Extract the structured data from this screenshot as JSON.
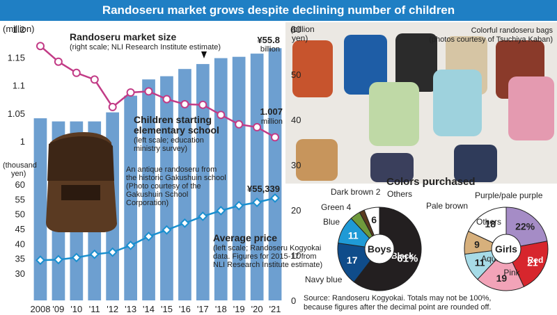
{
  "title": "Randoseru market grows despite declining number of children",
  "chart_data": [
    {
      "type": "bar",
      "title": "Randoseru market size",
      "subtitle": "(right scale; NLI Research Institute estimate)",
      "categories": [
        "2008",
        "'09",
        "'10",
        "'11",
        "'12",
        "'13",
        "'14",
        "'15",
        "'16",
        "'17",
        "'18",
        "'19",
        "'20",
        "'21"
      ],
      "values": [
        40.3,
        39.6,
        39.6,
        39.6,
        41.6,
        45.3,
        48.9,
        49.6,
        51.2,
        52.3,
        53.6,
        53.9,
        54.6,
        55.8
      ],
      "ylabel": "(billion yen)",
      "ylim": [
        0,
        60
      ],
      "yticks": [
        0,
        10,
        20,
        30,
        40,
        50,
        60
      ],
      "last_label": "¥55.8",
      "last_unit": "billion"
    },
    {
      "type": "line",
      "title": "Children starting elementary school",
      "subtitle": "(left scale; education ministry survey)",
      "categories": [
        "2008",
        "'09",
        "'10",
        "'11",
        "'12",
        "'13",
        "'14",
        "'15",
        "'16",
        "'17",
        "'18",
        "'19",
        "'20",
        "'21"
      ],
      "values": [
        1.17,
        1.142,
        1.122,
        1.11,
        1.061,
        1.087,
        1.089,
        1.075,
        1.066,
        1.065,
        1.047,
        1.03,
        1.025,
        1.007
      ],
      "ylabel": "(million)",
      "ylim": [
        0.95,
        1.2
      ],
      "yticks": [
        "1.2",
        "1.15",
        "1.1",
        "1.05",
        "1"
      ],
      "last_label": "1.007",
      "last_unit": "million"
    },
    {
      "type": "line",
      "title": "Average price",
      "subtitle_lines": [
        "(left scale; Randoseru Kogyokai",
        "data. Figures for 2015-17 from",
        "NLI Research Institute estimate)"
      ],
      "categories": [
        "2008",
        "'09",
        "'10",
        "'11",
        "'12",
        "'13",
        "'14",
        "'15",
        "'16",
        "'17",
        "'18",
        "'19",
        "'20",
        "'21"
      ],
      "values": [
        34.4,
        34.6,
        35.3,
        36.4,
        37.1,
        39.4,
        42.4,
        44.6,
        46.9,
        49.2,
        51.1,
        52.8,
        53.9,
        55.339
      ],
      "ylabel": "(thousand yen)",
      "ylim": [
        25,
        62
      ],
      "yticks": [
        30,
        35,
        40,
        45,
        50,
        55,
        60
      ],
      "last_label": "¥55,339"
    },
    {
      "type": "pie",
      "title": "Colors purchased",
      "center_label": "Boys",
      "slices": [
        {
          "label": "Black",
          "value": 61,
          "display": "61%",
          "color": "#231f20"
        },
        {
          "label": "Navy blue",
          "value": 17,
          "display": "17",
          "color": "#0f4c8a"
        },
        {
          "label": "Blue",
          "value": 11,
          "display": "11",
          "color": "#1f9ad6"
        },
        {
          "label": "Green",
          "value": 4,
          "display": "4",
          "color": "#6f9a3c"
        },
        {
          "label": "Dark brown",
          "value": 2,
          "display": "2",
          "color": "#5a3a1e"
        },
        {
          "label": "Others",
          "value": 6,
          "display": "6",
          "color": "#ffffff"
        }
      ]
    },
    {
      "type": "pie",
      "center_label": "Girls",
      "slices": [
        {
          "label": "Purple/pale purple",
          "value": 22,
          "display": "22%",
          "color": "#a58cc6"
        },
        {
          "label": "Red",
          "value": 21,
          "display": "21",
          "color": "#d7262d"
        },
        {
          "label": "Pink",
          "value": 19,
          "display": "19",
          "color": "#f2a3b8"
        },
        {
          "label": "Aqua",
          "value": 11,
          "display": "11",
          "color": "#a7dbe7"
        },
        {
          "label": "Pale brown",
          "value": 9,
          "display": "9",
          "color": "#d7b07c"
        },
        {
          "label": "Others",
          "value": 18,
          "display": "18",
          "color": "#ffffff"
        }
      ]
    }
  ],
  "photos": {
    "bags_caption_1": "Colorful randoseru bags",
    "bags_caption_2": "(photos courtesy of Tsuchiya Kaban)",
    "antique_caption": [
      "An antique randoseru from",
      "the historic Gakushuin school",
      "(Photo courtesy of the",
      "Gakushuin School",
      "Corporation)"
    ]
  },
  "source_1": "Source: Randoseru Kogyokai. Totals may not be 100%,",
  "source_2": "because figures after the decimal point are rounded off.",
  "colors": {
    "title_bg": "#1f7fc4",
    "bar": "#6d9fd0",
    "children_line": "#c23b86",
    "price_line": "#1a8fcf"
  }
}
